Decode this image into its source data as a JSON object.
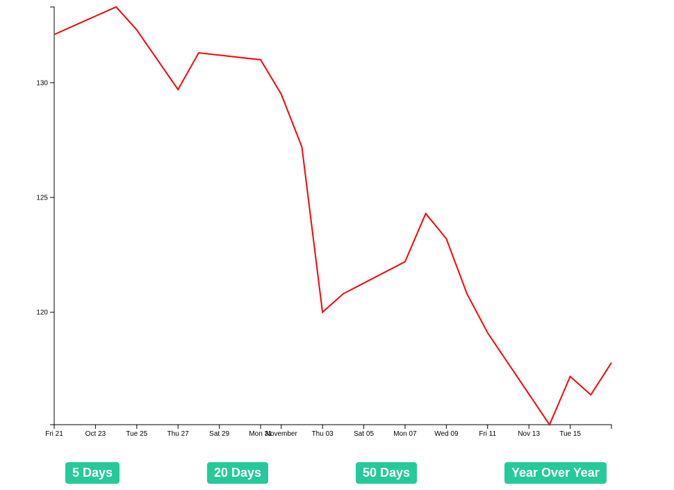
{
  "chart_data": {
    "type": "line",
    "x": [
      "Oct 21",
      "Oct 24",
      "Oct 25",
      "Oct 27",
      "Oct 28",
      "Oct 31",
      "Nov 01",
      "Nov 02",
      "Nov 03",
      "Nov 04",
      "Nov 07",
      "Nov 08",
      "Nov 09",
      "Nov 10",
      "Nov 11",
      "Nov 14",
      "Nov 15",
      "Nov 16",
      "Nov 17"
    ],
    "series": [
      {
        "color": "#ff0000",
        "values": [
          132.1,
          133.3,
          132.3,
          129.7,
          131.3,
          131.0,
          129.5,
          127.2,
          120.0,
          120.8,
          122.2,
          124.3,
          123.2,
          120.8,
          119.1,
          115.1,
          117.2,
          116.4,
          117.8
        ]
      }
    ],
    "xlim": [
      "Oct 21",
      "Nov 17"
    ],
    "xticks": [
      {
        "value": "Oct 21",
        "label": "Fri 21"
      },
      {
        "value": "Oct 23",
        "label": "Oct 23"
      },
      {
        "value": "Oct 25",
        "label": "Tue 25"
      },
      {
        "value": "Oct 27",
        "label": "Thu 27"
      },
      {
        "value": "Oct 29",
        "label": "Sat 29"
      },
      {
        "value": "Oct 31",
        "label": "Mon 31"
      },
      {
        "value": "Nov 01",
        "label": "November"
      },
      {
        "value": "Nov 03",
        "label": "Thu 03"
      },
      {
        "value": "Nov 05",
        "label": "Sat 05"
      },
      {
        "value": "Nov 07",
        "label": "Mon 07"
      },
      {
        "value": "Nov 09",
        "label": "Wed 09"
      },
      {
        "value": "Nov 11",
        "label": "Fri 11"
      },
      {
        "value": "Nov 13",
        "label": "Nov 13"
      },
      {
        "value": "Nov 15",
        "label": "Tue 15"
      }
    ],
    "ylim": [
      115.1,
      133.3
    ],
    "yticks": [
      120,
      125,
      130
    ]
  },
  "buttons": [
    "5 Days",
    "20 Days",
    "50 Days",
    "Year Over Year"
  ]
}
